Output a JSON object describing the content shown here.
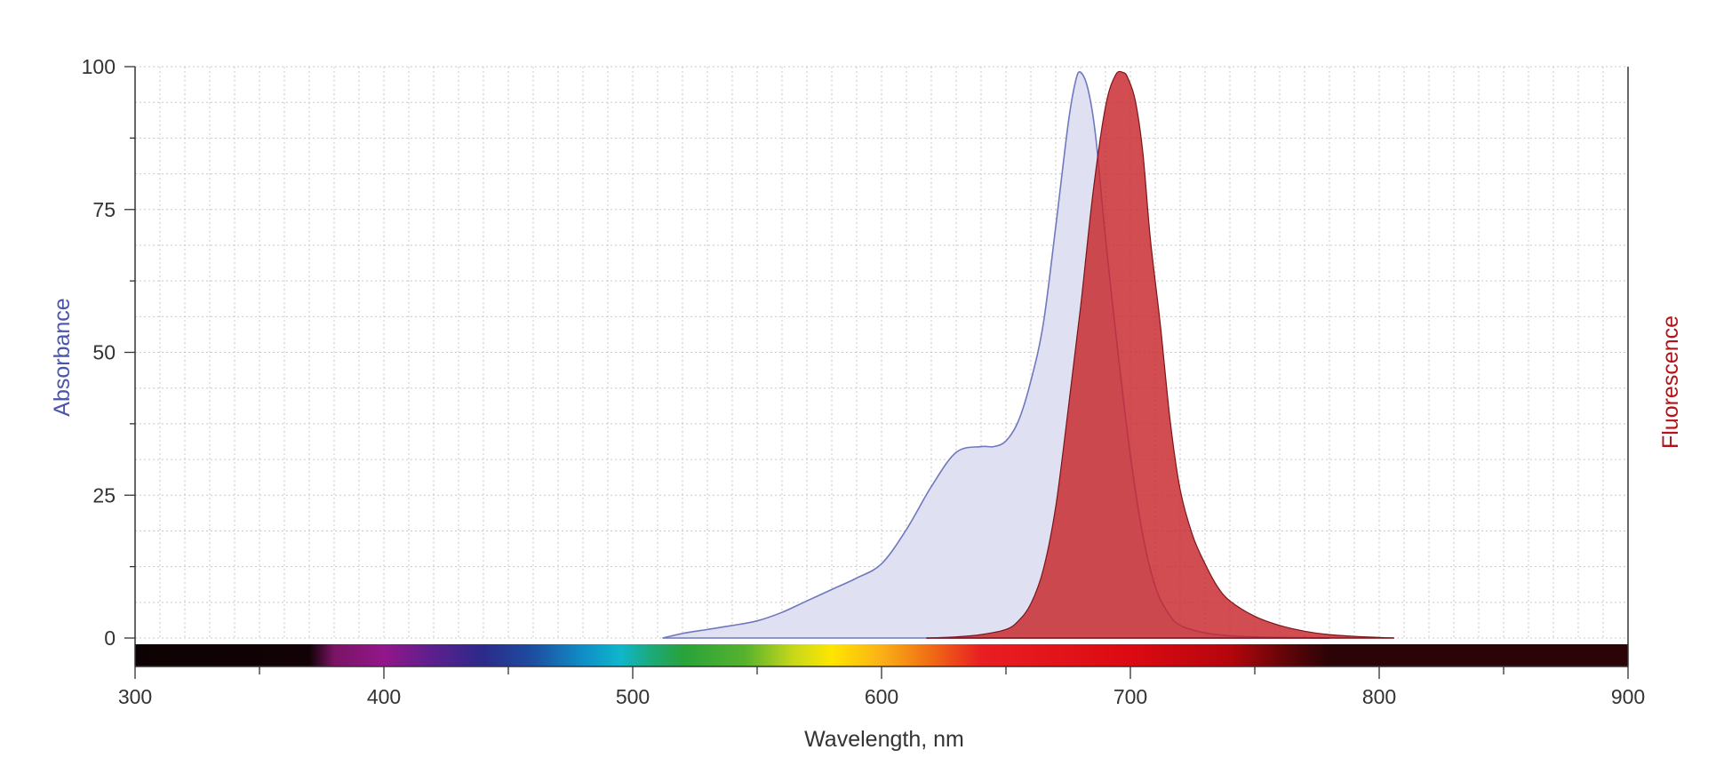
{
  "chart_data": {
    "type": "area",
    "xlabel": "Wavelength, nm",
    "ylabel_left": "Absorbance",
    "ylabel_right": "Fluorescence",
    "xlim": [
      300,
      900
    ],
    "ylim": [
      0,
      100
    ],
    "x_ticks": [
      300,
      400,
      500,
      600,
      700,
      800,
      900
    ],
    "y_ticks": [
      0,
      25,
      50,
      75,
      100
    ],
    "grid": true,
    "colors": {
      "absorbance_fill": "#dfe1f3",
      "absorbance_stroke": "#6f78bd",
      "absorbance_label": "#4b55aa",
      "fluorescence_fill": "#c8262b",
      "fluorescence_stroke": "#7a1518",
      "fluorescence_label": "#b31218"
    },
    "spectrum_bar": [
      {
        "wl": 300,
        "color": "#0d0203"
      },
      {
        "wl": 370,
        "color": "#120205"
      },
      {
        "wl": 380,
        "color": "#7a1465"
      },
      {
        "wl": 400,
        "color": "#93168a"
      },
      {
        "wl": 420,
        "color": "#5b1f8c"
      },
      {
        "wl": 440,
        "color": "#2b2a8a"
      },
      {
        "wl": 460,
        "color": "#1d4ea0"
      },
      {
        "wl": 480,
        "color": "#0f8ec6"
      },
      {
        "wl": 495,
        "color": "#0fb6cc"
      },
      {
        "wl": 505,
        "color": "#1aab88"
      },
      {
        "wl": 520,
        "color": "#27a23b"
      },
      {
        "wl": 545,
        "color": "#56b22e"
      },
      {
        "wl": 565,
        "color": "#c9d81a"
      },
      {
        "wl": 580,
        "color": "#ffe600"
      },
      {
        "wl": 600,
        "color": "#fbb017"
      },
      {
        "wl": 620,
        "color": "#f06b14"
      },
      {
        "wl": 640,
        "color": "#e81e23"
      },
      {
        "wl": 700,
        "color": "#dc0a12"
      },
      {
        "wl": 740,
        "color": "#b5060d"
      },
      {
        "wl": 760,
        "color": "#6a0508"
      },
      {
        "wl": 780,
        "color": "#2a0406"
      },
      {
        "wl": 900,
        "color": "#2a0406"
      }
    ],
    "series": [
      {
        "key": "absorbance",
        "x": [
          512,
          520,
          530,
          540,
          550,
          560,
          570,
          580,
          590,
          600,
          610,
          620,
          630,
          640,
          645,
          650,
          655,
          660,
          665,
          670,
          675,
          678,
          680,
          683,
          686,
          690,
          695,
          700,
          705,
          710,
          715,
          720,
          730,
          740,
          750,
          760,
          770,
          780
        ],
        "y": [
          0,
          0.8,
          1.5,
          2.2,
          3,
          4.5,
          6.5,
          8.5,
          10.5,
          13,
          19,
          26.5,
          32.5,
          33.5,
          33.5,
          34.5,
          38,
          45,
          55,
          72,
          90,
          97.5,
          99,
          96,
          88,
          70,
          50,
          32,
          18,
          9,
          4.5,
          2.2,
          0.9,
          0.4,
          0.2,
          0.1,
          0.05,
          0
        ]
      },
      {
        "key": "fluorescence",
        "x": [
          618,
          630,
          640,
          650,
          655,
          660,
          665,
          670,
          675,
          680,
          685,
          690,
          694,
          697,
          699,
          702,
          705,
          708,
          712,
          716,
          720,
          725,
          730,
          735,
          740,
          750,
          760,
          770,
          780,
          790,
          800,
          806
        ],
        "y": [
          0,
          0.2,
          0.6,
          1.5,
          3,
          6,
          12,
          23,
          40,
          58,
          78,
          93,
          98.5,
          99,
          98,
          94,
          85,
          70,
          55,
          38,
          26,
          18,
          13,
          9,
          6.5,
          3.8,
          2.2,
          1.2,
          0.6,
          0.3,
          0.1,
          0
        ]
      }
    ]
  }
}
